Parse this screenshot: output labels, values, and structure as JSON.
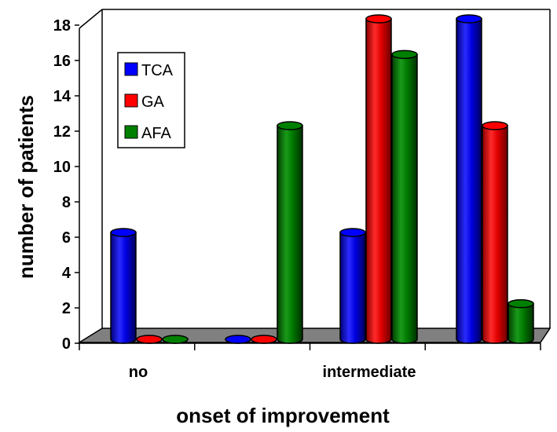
{
  "chart_data": {
    "type": "bar",
    "categories": [
      "no",
      "",
      "intermediate",
      ""
    ],
    "series": [
      {
        "name": "TCA",
        "color": "#0000ff",
        "values": [
          6,
          0,
          6,
          18
        ]
      },
      {
        "name": "GA",
        "color": "#ff0000",
        "values": [
          0,
          0,
          18,
          12
        ]
      },
      {
        "name": "AFA",
        "color": "#008000",
        "values": [
          0,
          12,
          16,
          2
        ]
      }
    ],
    "yticks": [
      0,
      2,
      4,
      6,
      8,
      10,
      12,
      14,
      16,
      18
    ],
    "ylim": [
      0,
      18
    ],
    "xlabel": "onset of improvement",
    "ylabel": "number of patients",
    "legend_position": "top-left",
    "floor_color": "#808080",
    "style": "3d-cylinder"
  }
}
